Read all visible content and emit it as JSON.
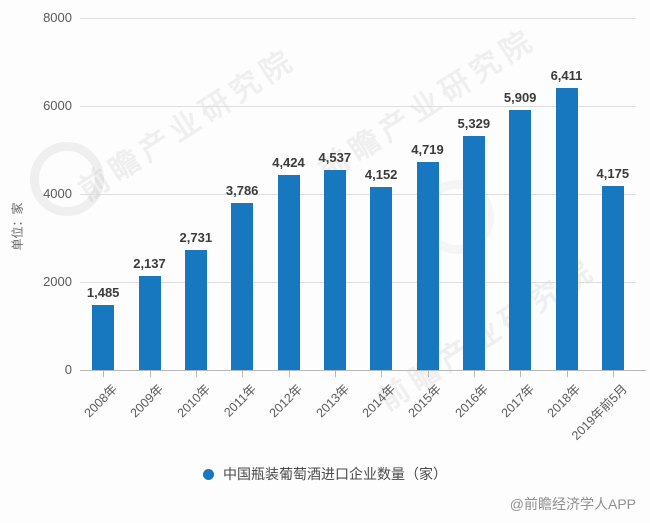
{
  "chart_data": {
    "type": "bar",
    "categories": [
      "2008年",
      "2009年",
      "2010年",
      "2011年",
      "2012年",
      "2013年",
      "2014年",
      "2015年",
      "2016年",
      "2017年",
      "2018年",
      "2019年前5月"
    ],
    "values": [
      1485,
      2137,
      2731,
      3786,
      4424,
      4537,
      4152,
      4719,
      5329,
      5909,
      6411,
      4175
    ],
    "value_labels": [
      "1,485",
      "2,137",
      "2,731",
      "3,786",
      "4,424",
      "4,537",
      "4,152",
      "4,719",
      "5,329",
      "5,909",
      "6,411",
      "4,175"
    ],
    "title": "",
    "xlabel": "",
    "ylabel": "单位：家",
    "ylim": [
      0,
      8000
    ],
    "yticks": [
      0,
      2000,
      4000,
      6000,
      8000
    ],
    "grid": true,
    "legend": "中国瓶装葡萄酒进口企业数量（家）",
    "legend_position": "bottom-center",
    "bar_color": "#1878bf"
  },
  "watermark": {
    "brand_text": "前瞻产业研究院",
    "credit_text": "@前瞻经济学人APP"
  },
  "colors": {
    "bar": "#1878bf",
    "gridline": "#dedede",
    "axis": "#b9b9b9",
    "tick_text": "#595959",
    "value_text": "#3b3b3b",
    "credit_text": "#8f8f8f"
  }
}
